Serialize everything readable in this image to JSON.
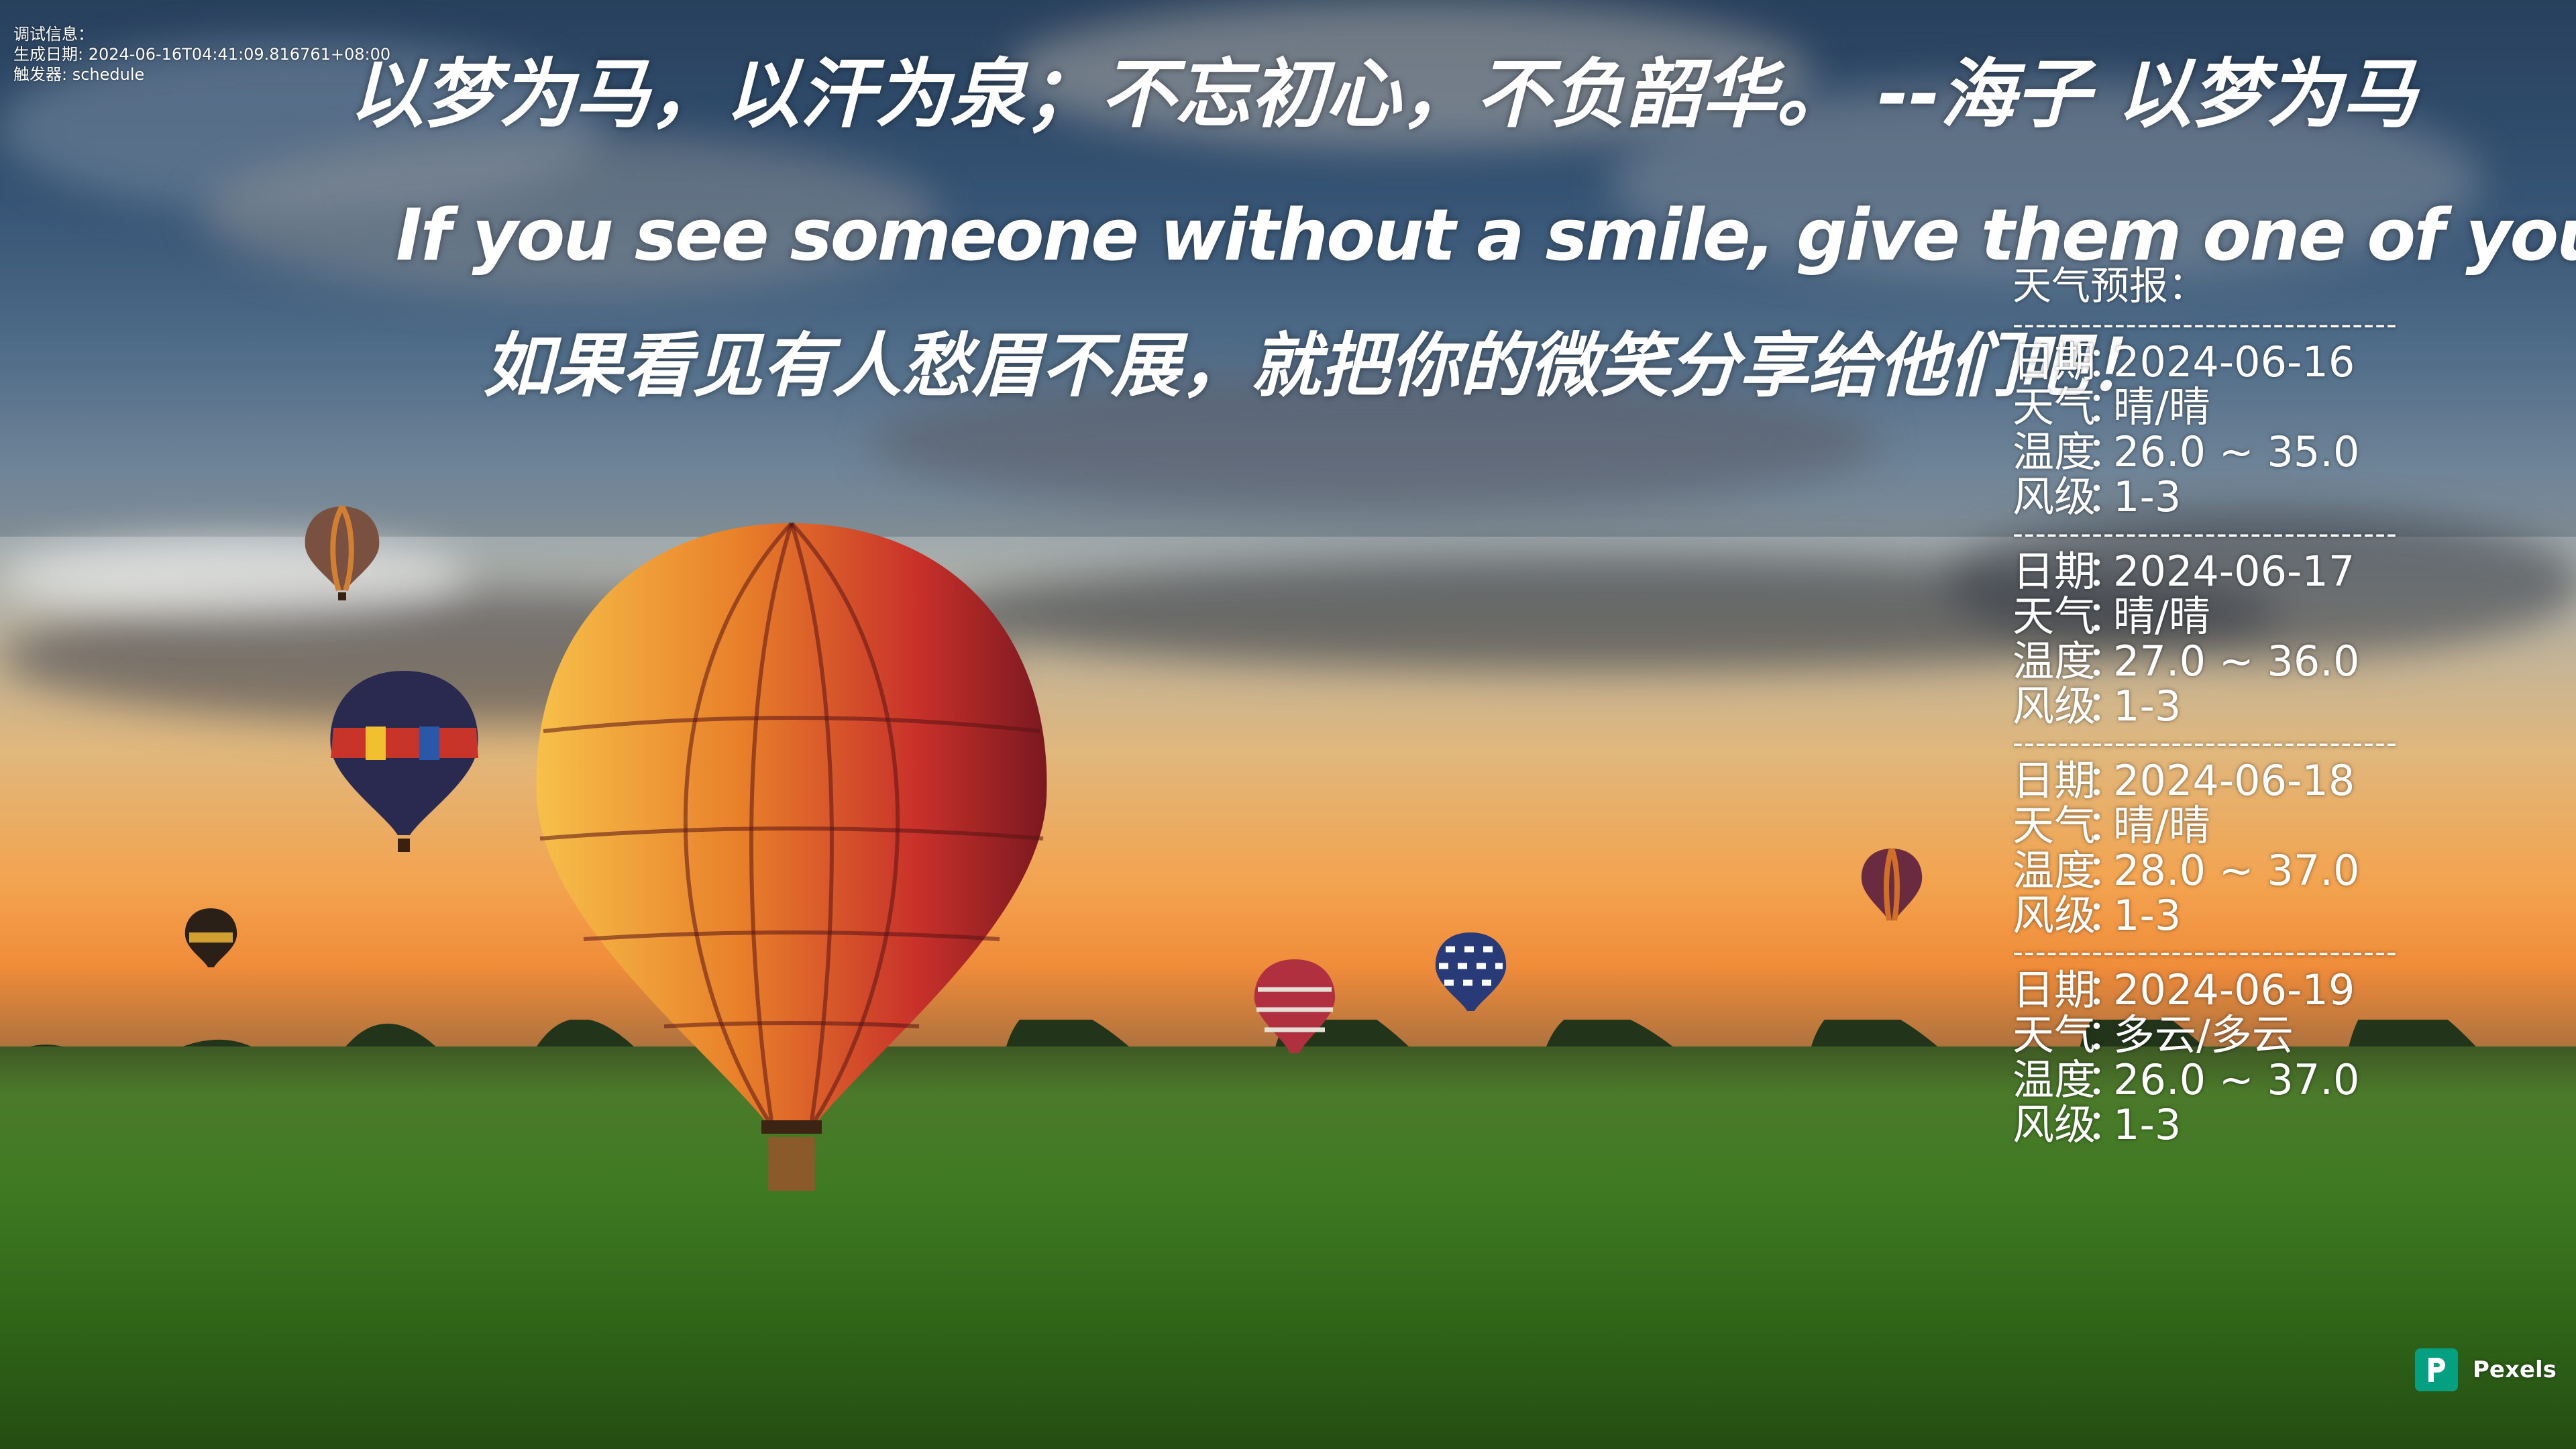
{
  "debug": {
    "line1": "调试信息：",
    "line2": "生成日期: 2024-06-16T04:41:09.816761+08:00",
    "line3": "触发器: schedule"
  },
  "quotes": {
    "chinese": "以梦为马，以汗为泉；不忘初心，不负韶华。 --海子 以梦为马",
    "english": "If you see someone without a smile, give them one of yours.",
    "translation": "如果看见有人愁眉不展，就把你的微笑分享给他们吧！"
  },
  "weather": {
    "title": "天气预报：",
    "separator": "----------------------------------",
    "labels": {
      "date": "日期",
      "weather": "天气",
      "temp": "温度",
      "wind": "风级",
      "colon": "："
    },
    "days": [
      {
        "date": "2024-06-16",
        "weather": "晴/晴",
        "temp": "26.0 ~ 35.0",
        "wind": "1-3"
      },
      {
        "date": "2024-06-17",
        "weather": "晴/晴",
        "temp": "27.0 ~ 36.0",
        "wind": "1-3"
      },
      {
        "date": "2024-06-18",
        "weather": "晴/晴",
        "temp": "28.0 ~ 37.0",
        "wind": "1-3"
      },
      {
        "date": "2024-06-19",
        "weather": "多云/多云",
        "temp": "26.0 ~ 37.0",
        "wind": "1-3"
      }
    ]
  },
  "badge": {
    "label": "Pexels",
    "icon": "pexels-logo-icon",
    "color": "#05a081"
  }
}
